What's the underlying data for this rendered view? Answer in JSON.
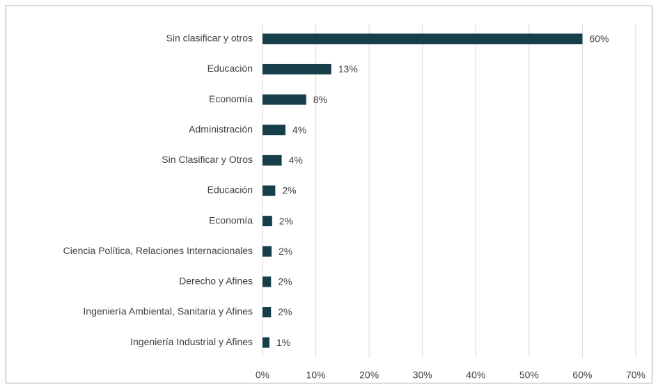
{
  "chart_data": {
    "type": "bar",
    "orientation": "horizontal",
    "categories": [
      "Sin clasificar y otros",
      "Educación",
      "Economía",
      "Administración",
      "Sin Clasificar y Otros",
      "Educación",
      "Economía",
      "Ciencia Política, Relaciones Internacionales",
      "Derecho y Afines",
      "Ingeniería Ambiental, Sanitaria y Afines",
      "Ingeniería Industrial y Afines"
    ],
    "values": [
      60,
      12.9,
      8.2,
      4.3,
      3.6,
      2.4,
      1.8,
      1.7,
      1.6,
      1.6,
      1.3
    ],
    "value_labels": [
      "60%",
      "13%",
      "8%",
      "4%",
      "4%",
      "2%",
      "2%",
      "2%",
      "2%",
      "2%",
      "1%"
    ],
    "color": "#163f4a",
    "xlim": [
      0,
      70
    ],
    "xticks": [
      {
        "value": 0,
        "label": "0%"
      },
      {
        "value": 10,
        "label": "10%"
      },
      {
        "value": 20,
        "label": "20%"
      },
      {
        "value": 30,
        "label": "30%"
      },
      {
        "value": 40,
        "label": "40%"
      },
      {
        "value": 50,
        "label": "50%"
      },
      {
        "value": 60,
        "label": "60%"
      },
      {
        "value": 70,
        "label": "70%"
      }
    ],
    "grid": true
  }
}
